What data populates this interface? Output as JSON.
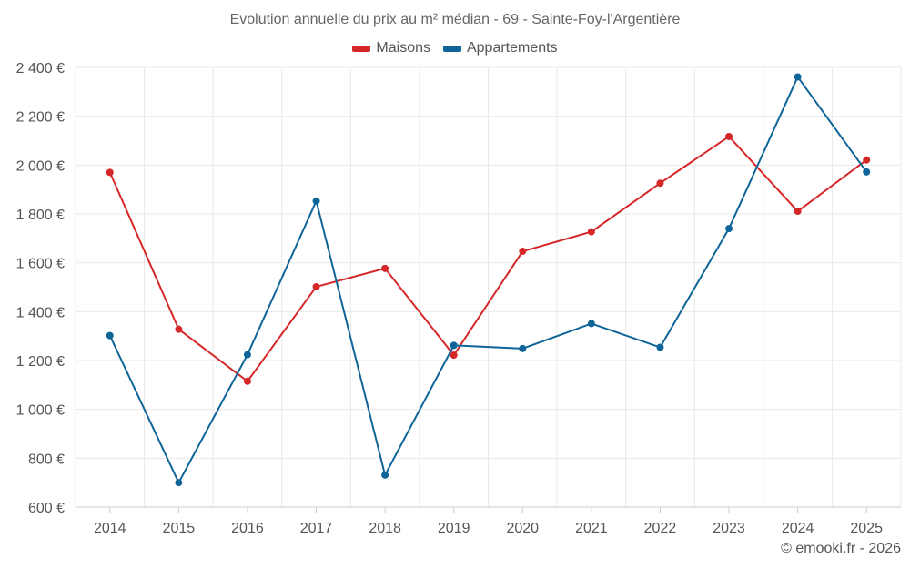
{
  "chart_data": {
    "type": "line",
    "title": "Evolution annuelle du prix au m² médian - 69 - Sainte-Foy-l'Argentière",
    "categories": [
      "2014",
      "2015",
      "2016",
      "2017",
      "2018",
      "2019",
      "2020",
      "2021",
      "2022",
      "2023",
      "2024",
      "2025"
    ],
    "series": [
      {
        "name": "Maisons",
        "color": "#d62728",
        "values": [
          1970,
          1328,
          1115,
          1502,
          1577,
          1222,
          1647,
          1727,
          1926,
          2117,
          1811,
          2021
        ]
      },
      {
        "name": "Appartements",
        "color": "#0f6598",
        "values": [
          1302,
          700,
          1224,
          1853,
          731,
          1262,
          1249,
          1351,
          1254,
          1740,
          2361,
          1972
        ]
      }
    ],
    "ylim": [
      600,
      2400
    ],
    "yticks": [
      600,
      800,
      1000,
      1200,
      1400,
      1600,
      1800,
      2000,
      2200,
      2400
    ],
    "ytick_labels": [
      "600 €",
      "800 €",
      "1 000 €",
      "1 200 €",
      "1 400 €",
      "1 600 €",
      "1 800 €",
      "2 000 €",
      "2 200 €",
      "2 400 €"
    ],
    "grid": true,
    "legend_position": "top-center"
  },
  "credit": "© emooki.fr - 2026"
}
